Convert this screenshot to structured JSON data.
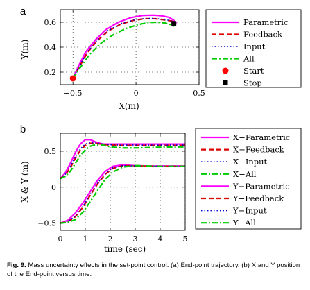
{
  "colors": {
    "parametric": "#ff00ff",
    "feedback": "#dd0000",
    "input": "#0000cc",
    "all": "#00cc00",
    "start": "#ff0000",
    "stop": "#000000"
  },
  "caption": {
    "label": "Fig. 9.",
    "text": "Mass uncertainty effects in the set-point control. (a) End-point trajectory. (b) X and Y position of the End-point versus time."
  },
  "chart_data": [
    {
      "panel_label": "a",
      "type": "line",
      "xlabel": "X(m)",
      "ylabel": "Y(m)",
      "xlim": [
        -0.6,
        0.5
      ],
      "ylim": [
        0.1,
        0.7
      ],
      "xticks": [
        -0.5,
        0,
        0.5
      ],
      "yticks": [
        0.2,
        0.4,
        0.6
      ],
      "xtick_labels": [
        "−0.5",
        "0",
        "0.5"
      ],
      "ytick_labels": [
        "0.2",
        "0.4",
        "0.6"
      ],
      "grid": true,
      "legend_position": "outside-right",
      "series": [
        {
          "name": "Parametric",
          "style": "solid",
          "color_key": "parametric",
          "x": [
            -0.5,
            -0.46,
            -0.4,
            -0.32,
            -0.24,
            -0.14,
            -0.04,
            0.06,
            0.14,
            0.2,
            0.26,
            0.3,
            0.32
          ],
          "y": [
            0.15,
            0.24,
            0.36,
            0.46,
            0.54,
            0.6,
            0.637,
            0.655,
            0.657,
            0.652,
            0.64,
            0.615,
            0.59
          ]
        },
        {
          "name": "Feedback",
          "style": "dashed",
          "color_key": "feedback",
          "x": [
            -0.5,
            -0.45,
            -0.39,
            -0.31,
            -0.22,
            -0.12,
            -0.02,
            0.07,
            0.15,
            0.22,
            0.28,
            0.31
          ],
          "y": [
            0.15,
            0.24,
            0.35,
            0.45,
            0.53,
            0.585,
            0.615,
            0.628,
            0.628,
            0.62,
            0.61,
            0.6
          ]
        },
        {
          "name": "Input",
          "style": "dotted",
          "color_key": "input",
          "x": [
            -0.5,
            -0.45,
            -0.39,
            -0.31,
            -0.22,
            -0.12,
            -0.02,
            0.07,
            0.15,
            0.22,
            0.28,
            0.31
          ],
          "y": [
            0.15,
            0.245,
            0.355,
            0.455,
            0.535,
            0.588,
            0.617,
            0.63,
            0.63,
            0.622,
            0.612,
            0.6
          ]
        },
        {
          "name": "All",
          "style": "dashdot",
          "color_key": "all",
          "x": [
            -0.5,
            -0.44,
            -0.37,
            -0.28,
            -0.18,
            -0.08,
            0.02,
            0.1,
            0.17,
            0.23,
            0.28,
            0.3
          ],
          "y": [
            0.15,
            0.24,
            0.34,
            0.43,
            0.5,
            0.55,
            0.582,
            0.598,
            0.6,
            0.594,
            0.58,
            0.565
          ]
        }
      ],
      "markers": [
        {
          "name": "Start",
          "x": -0.5,
          "y": 0.15,
          "shape": "circle",
          "color_key": "start"
        },
        {
          "name": "Stop",
          "x": 0.3,
          "y": 0.59,
          "shape": "square",
          "color_key": "stop"
        }
      ]
    },
    {
      "panel_label": "b",
      "type": "line",
      "xlabel": "time (sec)",
      "ylabel": "X & Y (m)",
      "xlim": [
        0,
        5
      ],
      "ylim": [
        -0.6,
        0.75
      ],
      "xticks": [
        0,
        1,
        2,
        3,
        4,
        5
      ],
      "yticks": [
        -0.5,
        0,
        0.5
      ],
      "xtick_labels": [
        "0",
        "1",
        "2",
        "3",
        "4",
        "5"
      ],
      "ytick_labels": [
        "−0.5",
        "0",
        "0.5"
      ],
      "grid": true,
      "legend_position": "outside-right",
      "series": [
        {
          "name": "X−Parametric",
          "style": "solid",
          "color_key": "parametric",
          "x": [
            0,
            0.2,
            0.4,
            0.6,
            0.8,
            1.0,
            1.2,
            1.4,
            1.7,
            2.0,
            2.5,
            3,
            3.5,
            4,
            4.5,
            5
          ],
          "y": [
            0.12,
            0.2,
            0.33,
            0.48,
            0.6,
            0.66,
            0.66,
            0.63,
            0.6,
            0.6,
            0.6,
            0.6,
            0.6,
            0.6,
            0.6,
            0.6
          ]
        },
        {
          "name": "X−Feedback",
          "style": "dashed",
          "color_key": "feedback",
          "x": [
            0,
            0.2,
            0.4,
            0.6,
            0.8,
            1.0,
            1.2,
            1.4,
            1.7,
            2.0,
            2.5,
            3,
            3.5,
            4,
            4.5,
            5
          ],
          "y": [
            0.12,
            0.17,
            0.27,
            0.4,
            0.51,
            0.58,
            0.61,
            0.61,
            0.595,
            0.585,
            0.58,
            0.58,
            0.58,
            0.58,
            0.58,
            0.58
          ]
        },
        {
          "name": "X−Input",
          "style": "dotted",
          "color_key": "input",
          "x": [
            0,
            0.2,
            0.4,
            0.6,
            0.8,
            1.0,
            1.2,
            1.4,
            1.7,
            2.0,
            2.5,
            3,
            3.5,
            4,
            4.5,
            5
          ],
          "y": [
            0.12,
            0.18,
            0.29,
            0.42,
            0.53,
            0.6,
            0.62,
            0.615,
            0.6,
            0.59,
            0.585,
            0.585,
            0.585,
            0.585,
            0.585,
            0.585
          ]
        },
        {
          "name": "X−All",
          "style": "dashdot",
          "color_key": "all",
          "x": [
            0,
            0.2,
            0.4,
            0.6,
            0.8,
            1.0,
            1.2,
            1.4,
            1.7,
            2.0,
            2.5,
            3,
            3.5,
            4,
            4.5,
            5
          ],
          "y": [
            0.12,
            0.15,
            0.22,
            0.33,
            0.44,
            0.52,
            0.57,
            0.59,
            0.585,
            0.56,
            0.545,
            0.545,
            0.55,
            0.555,
            0.558,
            0.56
          ]
        },
        {
          "name": "Y−Parametric",
          "style": "solid",
          "color_key": "parametric",
          "x": [
            0,
            0.3,
            0.6,
            0.9,
            1.2,
            1.5,
            1.8,
            2.1,
            2.5,
            3,
            3.5,
            4,
            4.5,
            5
          ],
          "y": [
            -0.5,
            -0.46,
            -0.36,
            -0.22,
            -0.06,
            0.1,
            0.22,
            0.29,
            0.31,
            0.3,
            0.295,
            0.295,
            0.295,
            0.295
          ]
        },
        {
          "name": "Y−Feedback",
          "style": "dashed",
          "color_key": "feedback",
          "x": [
            0,
            0.3,
            0.6,
            0.9,
            1.2,
            1.5,
            1.8,
            2.1,
            2.5,
            3,
            3.5,
            4,
            4.5,
            5
          ],
          "y": [
            -0.5,
            -0.48,
            -0.41,
            -0.28,
            -0.11,
            0.05,
            0.18,
            0.26,
            0.3,
            0.295,
            0.29,
            0.29,
            0.29,
            0.29
          ]
        },
        {
          "name": "Y−Input",
          "style": "dotted",
          "color_key": "input",
          "x": [
            0,
            0.3,
            0.6,
            0.9,
            1.2,
            1.5,
            1.8,
            2.1,
            2.5,
            3,
            3.5,
            4,
            4.5,
            5
          ],
          "y": [
            -0.5,
            -0.48,
            -0.4,
            -0.27,
            -0.1,
            0.06,
            0.19,
            0.27,
            0.3,
            0.295,
            0.29,
            0.29,
            0.29,
            0.29
          ]
        },
        {
          "name": "Y−All",
          "style": "dashdot",
          "color_key": "all",
          "x": [
            0,
            0.3,
            0.6,
            0.9,
            1.2,
            1.5,
            1.8,
            2.1,
            2.5,
            3,
            3.5,
            4,
            4.5,
            5
          ],
          "y": [
            -0.5,
            -0.49,
            -0.45,
            -0.35,
            -0.2,
            -0.04,
            0.11,
            0.21,
            0.28,
            0.3,
            0.295,
            0.29,
            0.29,
            0.29
          ]
        }
      ]
    }
  ]
}
